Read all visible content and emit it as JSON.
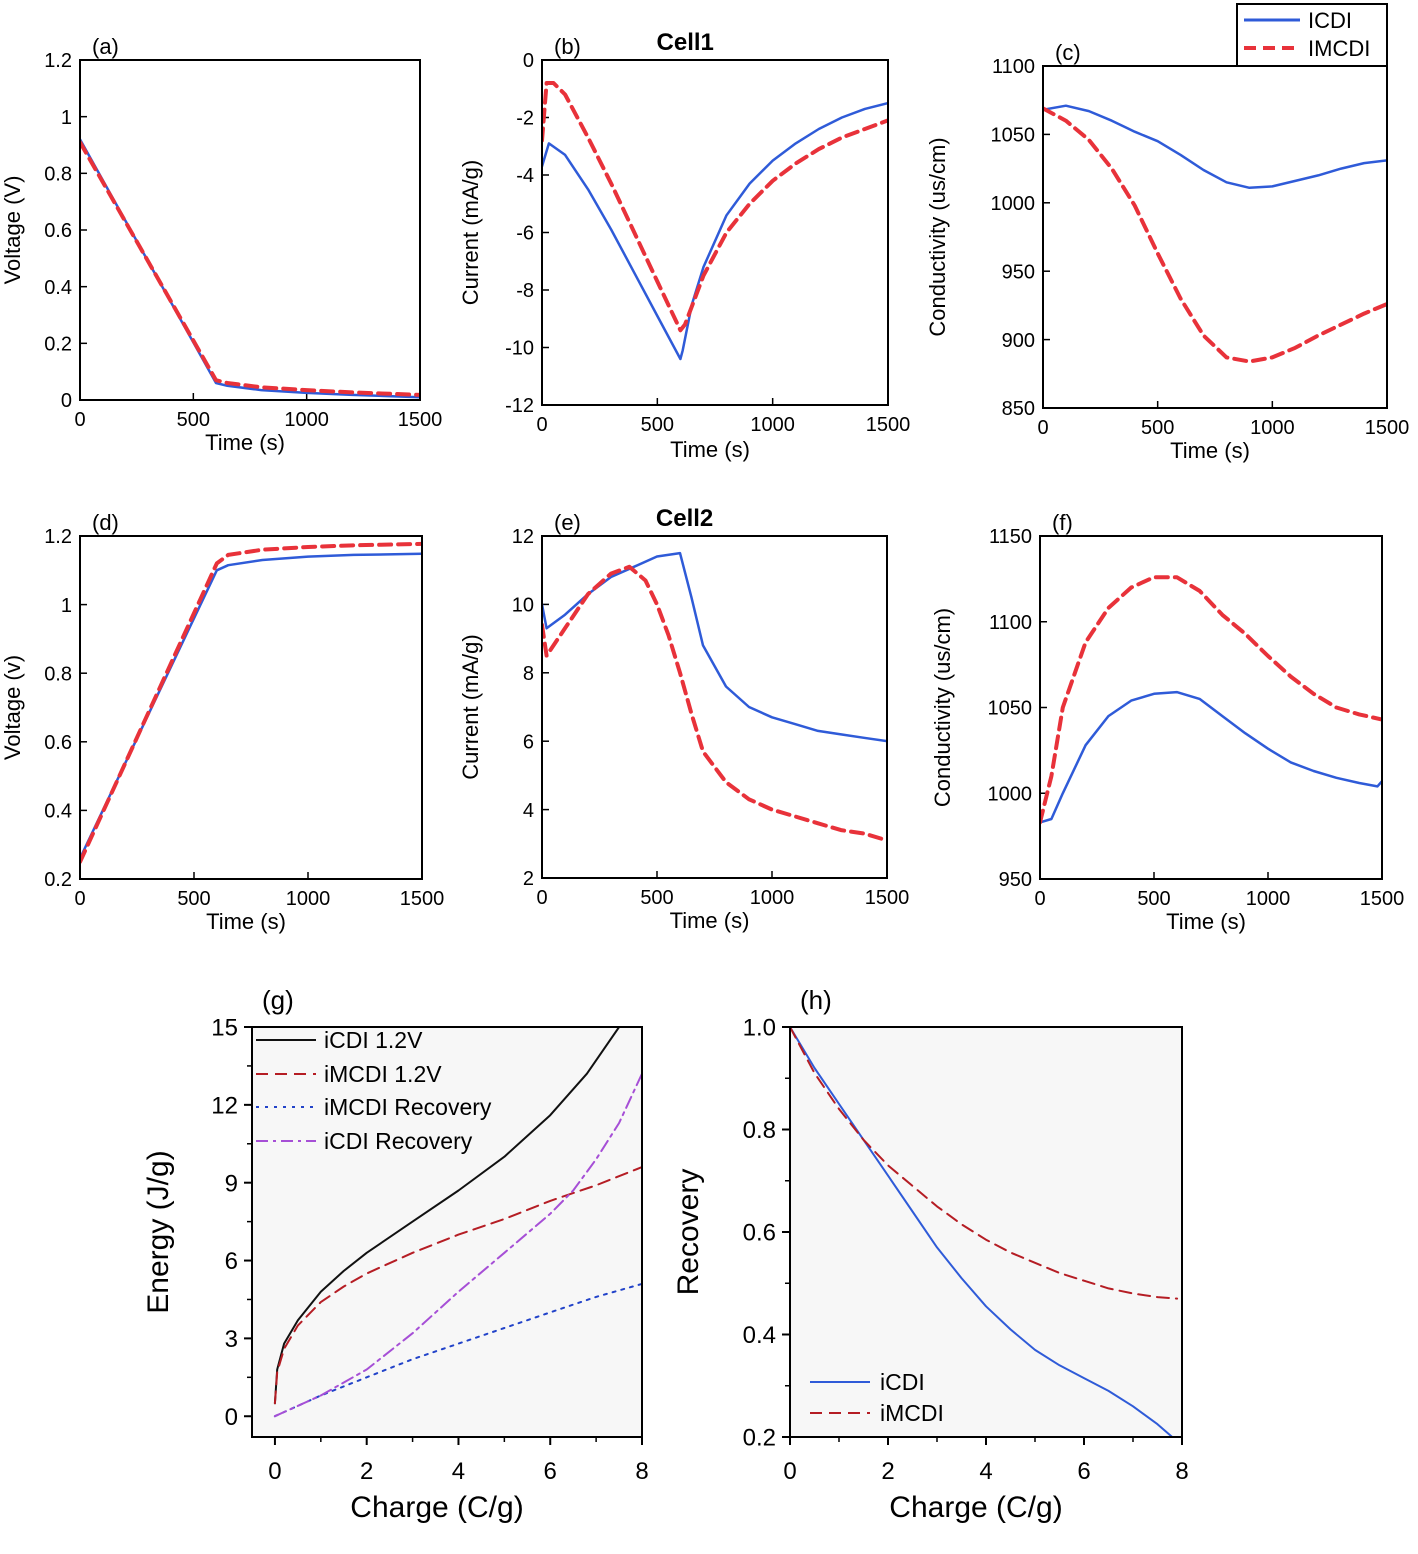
{
  "legend_top": {
    "entries": [
      {
        "label": "ICDI",
        "color": "#2f5bd8",
        "dash": "solid"
      },
      {
        "label": "IMCDI",
        "color": "#e8323a",
        "dash": "dashed"
      }
    ]
  },
  "chart_data": [
    {
      "id": "a",
      "panel_label": "(a)",
      "type": "line",
      "title": "",
      "xlabel": "Time (s)",
      "ylabel": "Voltage (V)",
      "xlim": [
        0,
        1500
      ],
      "ylim": [
        0,
        1.2
      ],
      "xticks": [
        0,
        500,
        1000,
        1500
      ],
      "xtick_labels": [
        "0",
        "500",
        "1000",
        "1500"
      ],
      "yticks": [
        0,
        0.2,
        0.4,
        0.6,
        0.8,
        1,
        1.2
      ],
      "ytick_labels": [
        "0",
        "0.2",
        "0.4",
        "0.6",
        "0.8",
        "1",
        "1.2"
      ],
      "series": [
        {
          "name": "ICDI",
          "color": "#2f5bd8",
          "dash": "solid",
          "x": [
            0,
            600,
            650,
            800,
            1000,
            1200,
            1500
          ],
          "y": [
            0.92,
            0.06,
            0.05,
            0.035,
            0.025,
            0.018,
            0.01
          ]
        },
        {
          "name": "IMCDI",
          "color": "#e8323a",
          "dash": "dashed",
          "x": [
            0,
            600,
            650,
            800,
            1000,
            1200,
            1500
          ],
          "y": [
            0.91,
            0.07,
            0.06,
            0.045,
            0.035,
            0.027,
            0.018
          ]
        }
      ]
    },
    {
      "id": "b",
      "panel_label": "(b)",
      "type": "line",
      "title": "Cell1",
      "xlabel": "Time (s)",
      "ylabel": "Current (mA/g)",
      "xlim": [
        0,
        1500
      ],
      "ylim": [
        -12,
        0
      ],
      "xticks": [
        0,
        500,
        1000,
        1500
      ],
      "xtick_labels": [
        "0",
        "500",
        "1000",
        "1500"
      ],
      "yticks": [
        -12,
        -10,
        -8,
        -6,
        -4,
        -2,
        0
      ],
      "ytick_labels": [
        "-12",
        "-10",
        "-8",
        "-6",
        "-4",
        "-2",
        "0"
      ],
      "series": [
        {
          "name": "ICDI",
          "color": "#2f5bd8",
          "dash": "solid",
          "x": [
            0,
            30,
            100,
            200,
            300,
            400,
            500,
            600,
            610,
            650,
            700,
            800,
            900,
            1000,
            1100,
            1200,
            1300,
            1400,
            1500
          ],
          "y": [
            -3.7,
            -2.9,
            -3.3,
            -4.5,
            -5.9,
            -7.4,
            -8.9,
            -10.4,
            -10.1,
            -8.5,
            -7.2,
            -5.4,
            -4.3,
            -3.5,
            -2.9,
            -2.4,
            -2.0,
            -1.7,
            -1.5
          ]
        },
        {
          "name": "IMCDI",
          "color": "#e8323a",
          "dash": "dashed",
          "x": [
            0,
            20,
            50,
            100,
            200,
            300,
            400,
            500,
            600,
            620,
            700,
            800,
            900,
            1000,
            1100,
            1200,
            1300,
            1400,
            1500
          ],
          "y": [
            -2.8,
            -0.8,
            -0.8,
            -1.2,
            -2.7,
            -4.3,
            -6.0,
            -7.7,
            -9.4,
            -9.2,
            -7.5,
            -6.0,
            -5.0,
            -4.2,
            -3.6,
            -3.1,
            -2.7,
            -2.4,
            -2.1
          ]
        }
      ]
    },
    {
      "id": "c",
      "panel_label": "(c)",
      "type": "line",
      "title": "",
      "xlabel": "Time (s)",
      "ylabel": "Conductivity (us/cm)",
      "xlim": [
        0,
        1500
      ],
      "ylim": [
        850,
        1100
      ],
      "xticks": [
        0,
        500,
        1000,
        1500
      ],
      "xtick_labels": [
        "0",
        "500",
        "1000",
        "1500"
      ],
      "yticks": [
        850,
        900,
        950,
        1000,
        1050,
        1100
      ],
      "ytick_labels": [
        "850",
        "900",
        "950",
        "1000",
        "1050",
        "1100"
      ],
      "series": [
        {
          "name": "ICDI",
          "color": "#2f5bd8",
          "dash": "solid",
          "x": [
            0,
            100,
            200,
            300,
            400,
            500,
            600,
            700,
            800,
            900,
            1000,
            1100,
            1200,
            1300,
            1400,
            1500
          ],
          "y": [
            1068,
            1071,
            1067,
            1060,
            1052,
            1045,
            1035,
            1024,
            1015,
            1011,
            1012,
            1016,
            1020,
            1025,
            1029,
            1031
          ]
        },
        {
          "name": "IMCDI",
          "color": "#e8323a",
          "dash": "dashed",
          "x": [
            0,
            100,
            200,
            300,
            400,
            500,
            600,
            700,
            800,
            900,
            1000,
            1100,
            1200,
            1300,
            1400,
            1500
          ],
          "y": [
            1069,
            1060,
            1046,
            1025,
            998,
            963,
            930,
            903,
            887,
            884,
            887,
            894,
            903,
            911,
            919,
            926
          ]
        }
      ]
    },
    {
      "id": "d",
      "panel_label": "(d)",
      "type": "line",
      "title": "",
      "xlabel": "Time (s)",
      "ylabel": "Voltage (v)",
      "xlim": [
        0,
        1500
      ],
      "ylim": [
        0.2,
        1.2
      ],
      "xticks": [
        0,
        500,
        1000,
        1500
      ],
      "xtick_labels": [
        "0",
        "500",
        "1000",
        "1500"
      ],
      "yticks": [
        0.2,
        0.4,
        0.6,
        0.8,
        1,
        1.2
      ],
      "ytick_labels": [
        "0.2",
        "0.4",
        "0.6",
        "0.8",
        "1",
        "1.2"
      ],
      "series": [
        {
          "name": "ICDI",
          "color": "#2f5bd8",
          "dash": "solid",
          "x": [
            0,
            600,
            650,
            800,
            1000,
            1200,
            1500
          ],
          "y": [
            0.26,
            1.1,
            1.115,
            1.13,
            1.14,
            1.145,
            1.148
          ]
        },
        {
          "name": "IMCDI",
          "color": "#e8323a",
          "dash": "dashed",
          "x": [
            0,
            600,
            650,
            800,
            1000,
            1200,
            1500
          ],
          "y": [
            0.25,
            1.12,
            1.145,
            1.16,
            1.168,
            1.173,
            1.177
          ]
        }
      ]
    },
    {
      "id": "e",
      "panel_label": "(e)",
      "type": "line",
      "title": "Cell2",
      "xlabel": "Time (s)",
      "ylabel": "Current (mA/g)",
      "xlim": [
        0,
        1500
      ],
      "ylim": [
        2,
        12
      ],
      "xticks": [
        0,
        500,
        1000,
        1500
      ],
      "xtick_labels": [
        "0",
        "500",
        "1000",
        "1500"
      ],
      "yticks": [
        2,
        4,
        6,
        8,
        10,
        12
      ],
      "ytick_labels": [
        "2",
        "4",
        "6",
        "8",
        "10",
        "12"
      ],
      "series": [
        {
          "name": "ICDI",
          "color": "#2f5bd8",
          "dash": "solid",
          "x": [
            0,
            20,
            100,
            200,
            300,
            400,
            500,
            600,
            650,
            700,
            800,
            900,
            1000,
            1100,
            1200,
            1300,
            1400,
            1500
          ],
          "y": [
            10.0,
            9.3,
            9.7,
            10.3,
            10.8,
            11.1,
            11.4,
            11.5,
            10.2,
            8.8,
            7.6,
            7.0,
            6.7,
            6.5,
            6.3,
            6.2,
            6.1,
            6.0
          ]
        },
        {
          "name": "IMCDI",
          "color": "#e8323a",
          "dash": "dashed",
          "x": [
            0,
            20,
            100,
            200,
            300,
            380,
            450,
            500,
            550,
            600,
            650,
            700,
            800,
            900,
            1000,
            1100,
            1200,
            1300,
            1400,
            1500
          ],
          "y": [
            9.4,
            8.5,
            9.3,
            10.3,
            10.9,
            11.1,
            10.7,
            10.0,
            9.1,
            8.0,
            6.8,
            5.7,
            4.8,
            4.3,
            4.0,
            3.8,
            3.6,
            3.4,
            3.3,
            3.1
          ]
        }
      ]
    },
    {
      "id": "f",
      "panel_label": "(f)",
      "type": "line",
      "title": "",
      "xlabel": "Time (s)",
      "ylabel": "Conductivity (us/cm)",
      "xlim": [
        0,
        1500
      ],
      "ylim": [
        950,
        1150
      ],
      "xticks": [
        0,
        500,
        1000,
        1500
      ],
      "xtick_labels": [
        "0",
        "500",
        "1000",
        "1500"
      ],
      "yticks": [
        950,
        1000,
        1050,
        1100,
        1150
      ],
      "ytick_labels": [
        "950",
        "1000",
        "1050",
        "1100",
        "1150"
      ],
      "series": [
        {
          "name": "ICDI",
          "color": "#2f5bd8",
          "dash": "solid",
          "x": [
            0,
            50,
            100,
            200,
            300,
            400,
            500,
            600,
            700,
            800,
            900,
            1000,
            1100,
            1200,
            1300,
            1400,
            1480,
            1500
          ],
          "y": [
            983,
            985,
            1000,
            1028,
            1045,
            1054,
            1058,
            1059,
            1055,
            1045,
            1035,
            1026,
            1018,
            1013,
            1009,
            1006,
            1004,
            1007
          ]
        },
        {
          "name": "IMCDI",
          "color": "#e8323a",
          "dash": "dashed",
          "x": [
            0,
            50,
            100,
            200,
            300,
            400,
            500,
            600,
            700,
            800,
            900,
            1000,
            1100,
            1200,
            1300,
            1400,
            1500
          ],
          "y": [
            983,
            1010,
            1050,
            1088,
            1108,
            1120,
            1126,
            1126,
            1118,
            1104,
            1093,
            1080,
            1068,
            1058,
            1050,
            1046,
            1043
          ]
        }
      ]
    },
    {
      "id": "g",
      "panel_label": "(g)",
      "type": "line",
      "title": "",
      "xlabel": "Charge (C/g)",
      "ylabel": "Energy (J/g)",
      "xlim": [
        -0.5,
        8
      ],
      "ylim": [
        -0.8,
        15
      ],
      "xticks": [
        0,
        2,
        4,
        6,
        8
      ],
      "xtick_labels": [
        "0",
        "2",
        "4",
        "6",
        "8"
      ],
      "yticks": [
        0,
        3,
        6,
        9,
        12,
        15
      ],
      "ytick_labels": [
        "0",
        "3",
        "6",
        "9",
        "12",
        "15"
      ],
      "legend": [
        {
          "label": "iCDI 1.2V"
        },
        {
          "label": "iMCDI 1.2V"
        },
        {
          "label": "iMCDI Recovery"
        },
        {
          "label": "iCDI Recovery"
        }
      ],
      "series": [
        {
          "name": "iCDI 1.2V",
          "color": "#111111",
          "dash": "solid",
          "x": [
            0,
            0.05,
            0.2,
            0.5,
            1,
            1.5,
            2,
            3,
            4,
            5,
            6,
            6.8,
            7.5
          ],
          "y": [
            0.5,
            1.8,
            2.8,
            3.7,
            4.8,
            5.6,
            6.3,
            7.5,
            8.7,
            10.0,
            11.6,
            13.2,
            15.0
          ]
        },
        {
          "name": "iMCDI 1.2V",
          "color": "#b51d24",
          "dash": "dashed",
          "x": [
            0,
            0.05,
            0.2,
            0.5,
            1,
            1.5,
            2,
            3,
            4,
            5,
            6,
            7,
            8
          ],
          "y": [
            0.5,
            1.7,
            2.6,
            3.5,
            4.4,
            5.0,
            5.5,
            6.3,
            7.0,
            7.6,
            8.3,
            8.9,
            9.6
          ]
        },
        {
          "name": "iMCDI Recovery",
          "color": "#2243c9",
          "dash": "dotted",
          "x": [
            0,
            1,
            2,
            3,
            4,
            5,
            6,
            7,
            8
          ],
          "y": [
            0,
            0.8,
            1.5,
            2.2,
            2.8,
            3.4,
            4.0,
            4.6,
            5.1
          ]
        },
        {
          "name": "iCDI Recovery",
          "color": "#a64fd6",
          "dash": "dashdot",
          "x": [
            0,
            1,
            2,
            3,
            4,
            5,
            6,
            6.5,
            7,
            7.5,
            8
          ],
          "y": [
            0,
            0.8,
            1.8,
            3.2,
            4.8,
            6.3,
            7.8,
            8.7,
            9.9,
            11.3,
            13.2
          ]
        }
      ]
    },
    {
      "id": "h",
      "panel_label": "(h)",
      "type": "line",
      "title": "",
      "xlabel": "Charge (C/g)",
      "ylabel": "Recovery",
      "xlim": [
        0,
        8
      ],
      "ylim": [
        0.2,
        1.0
      ],
      "xticks": [
        0,
        2,
        4,
        6,
        8
      ],
      "xtick_labels": [
        "0",
        "2",
        "4",
        "6",
        "8"
      ],
      "yticks": [
        0.2,
        0.4,
        0.6,
        0.8,
        1.0
      ],
      "ytick_labels": [
        "0.2",
        "0.4",
        "0.6",
        "0.8",
        "1.0"
      ],
      "legend": [
        {
          "label": "iCDI"
        },
        {
          "label": "iMCDI"
        }
      ],
      "series": [
        {
          "name": "iCDI",
          "color": "#2f5bd8",
          "dash": "solid",
          "x": [
            0,
            0.5,
            1,
            1.5,
            2,
            2.5,
            3,
            3.5,
            4,
            4.5,
            5,
            5.5,
            6,
            6.5,
            7,
            7.5,
            7.8
          ],
          "y": [
            1.0,
            0.92,
            0.85,
            0.78,
            0.71,
            0.64,
            0.57,
            0.51,
            0.455,
            0.41,
            0.37,
            0.34,
            0.315,
            0.29,
            0.26,
            0.225,
            0.2
          ]
        },
        {
          "name": "iMCDI",
          "color": "#b51d24",
          "dash": "dashed",
          "x": [
            0,
            0.5,
            1,
            1.5,
            2,
            2.5,
            3,
            3.5,
            4,
            4.5,
            5,
            5.5,
            6,
            6.5,
            7,
            7.5,
            7.9
          ],
          "y": [
            1.0,
            0.91,
            0.84,
            0.78,
            0.73,
            0.69,
            0.65,
            0.615,
            0.585,
            0.56,
            0.54,
            0.52,
            0.505,
            0.49,
            0.48,
            0.473,
            0.47
          ]
        }
      ]
    }
  ]
}
